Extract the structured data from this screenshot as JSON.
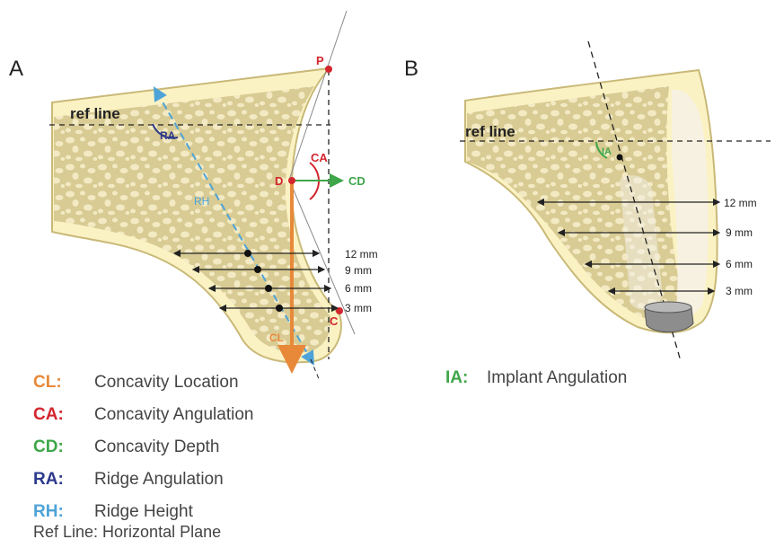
{
  "panel_a": {
    "label": "A",
    "ref_line": "ref line",
    "points": {
      "p": "P",
      "d": "D",
      "c": "C"
    },
    "angles": {
      "ra": "RA",
      "ca": "CA"
    },
    "measures": {
      "cd": "CD",
      "rh": "RH",
      "cl": "CL"
    },
    "widths": [
      "12 mm",
      "9 mm",
      "6 mm",
      "3 mm"
    ]
  },
  "panel_b": {
    "label": "B",
    "ref_line": "ref line",
    "angle": "IA",
    "widths": [
      "12 mm",
      "9 mm",
      "6 mm",
      "3 mm"
    ]
  },
  "legend": {
    "items": [
      {
        "abbr": "CL:",
        "desc": "Concavity Location",
        "color": "#e8893a"
      },
      {
        "abbr": "CA:",
        "desc": "Concavity Angulation",
        "color": "#d3262e"
      },
      {
        "abbr": "CD:",
        "desc": "Concavity Depth",
        "color": "#3fa64a"
      },
      {
        "abbr": "RA:",
        "desc": "Ridge Angulation",
        "color": "#2d3a8c"
      },
      {
        "abbr": "RH:",
        "desc": "Ridge Height",
        "color": "#4ea3d8"
      }
    ],
    "footer": "Ref Line: Horizontal Plane",
    "panel_b_item": {
      "abbr": "IA:",
      "desc": "Implant Angulation",
      "color": "#3fa64a"
    }
  },
  "colors": {
    "bone_fill": "#ddd099",
    "bone_pore": "#f1e7bf",
    "cortex": "#fbf2c4",
    "outline": "#c9b978"
  }
}
